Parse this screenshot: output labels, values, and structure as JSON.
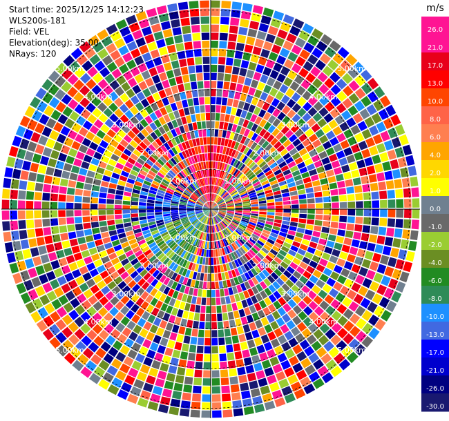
{
  "info": {
    "start_time": "Start time: 2025/12/25 14:12:23",
    "device": "WLS200s-181",
    "field": "Field: VEL",
    "elevation": "Elevation(deg): 35.00",
    "nrays": "NRays: 120"
  },
  "chart_data": {
    "type": "heatmap",
    "projection": "polar-ppi",
    "field": "VEL",
    "nrays": 120,
    "range_rings_km": [
      1.0,
      2.0,
      3.0,
      4.0,
      5.0
    ],
    "range_ring_labels": [
      "1.00km",
      "2.00km",
      "3.00km",
      "4.00km",
      "5.00km"
    ],
    "max_range_km": 5.25,
    "colorbar": {
      "unit": "m/s",
      "ticks": [
        "26.0",
        "21.0",
        "17.0",
        "13.0",
        "10.0",
        "8.0",
        "6.0",
        "4.0",
        "2.0",
        "1.0",
        "0.0",
        "-1.0",
        "-2.0",
        "-4.0",
        "-6.0",
        "-8.0",
        "-10.0",
        "-13.0",
        "-17.0",
        "-21.0",
        "-26.0",
        "-30.0"
      ],
      "colors": [
        "#ff1493",
        "#ff1493",
        "#e8001a",
        "#ff0000",
        "#ff4500",
        "#ff6347",
        "#ff7f50",
        "#ffa500",
        "#ffd700",
        "#ffff00",
        "#708090",
        "#696969",
        "#9acd32",
        "#6b8e23",
        "#228b22",
        "#2e8b57",
        "#1e90ff",
        "#4169e1",
        "#0000ff",
        "#0000cd",
        "#000080",
        "#191970"
      ]
    }
  }
}
